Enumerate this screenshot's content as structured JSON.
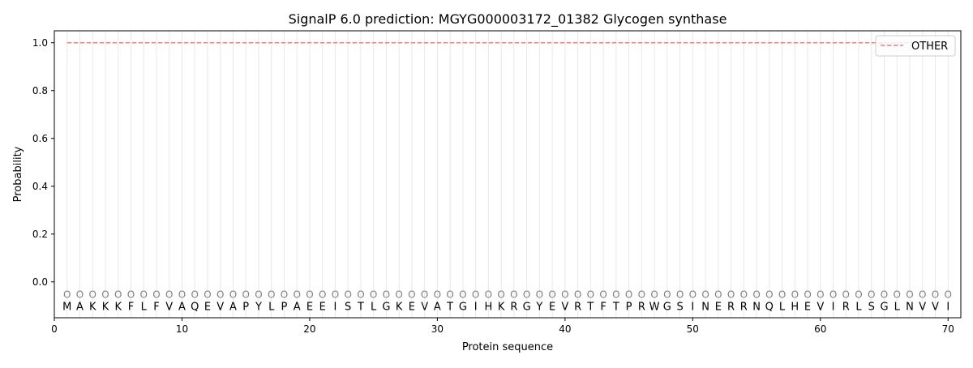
{
  "chart_data": {
    "type": "line",
    "title": "SignalP 6.0 prediction: MGYG000003172_01382 Glycogen synthase",
    "xlabel": "Protein sequence",
    "ylabel": "Probability",
    "xlim": [
      0,
      71
    ],
    "ylim": [
      -0.15,
      1.05
    ],
    "xticks": [
      0,
      10,
      20,
      30,
      40,
      50,
      60,
      70
    ],
    "yticks": [
      0.0,
      0.2,
      0.4,
      0.6,
      0.8,
      1.0
    ],
    "ytick_labels": [
      "0.0",
      "0.2",
      "0.4",
      "0.6",
      "0.8",
      "1.0"
    ],
    "grid": "vertical lines at each residue",
    "legend_position": "top-right",
    "series": [
      {
        "name": "OTHER",
        "color": "#f08080",
        "style": "dashed",
        "x_start": 1,
        "x_end": 70,
        "value": 1.0
      }
    ],
    "sequence": "MAKKKFLFVAQEVAPYLPAEEISTLGKEVATGIHKRGYEVRTFTPRWGSINERRNQLHEVIRLSGLNVVI",
    "predicted_labels": "OOOOOOOOOOOOOOOOOOOOOOOOOOOOOOOOOOOOOOOOOOOOOOOOOOOOOOOOOOOOOOOOOOOOOO",
    "label_color": "#808080"
  }
}
